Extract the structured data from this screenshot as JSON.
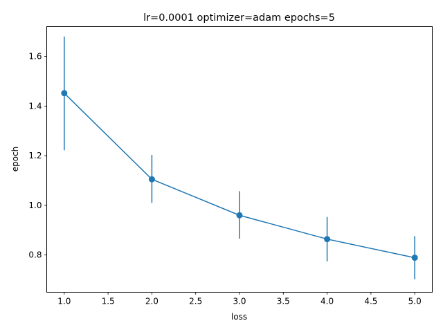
{
  "chart_data": {
    "type": "line",
    "title": "lr=0.0001 optimizer=adam epochs=5",
    "xlabel": "loss",
    "ylabel": "epoch",
    "xlim": [
      0.8,
      5.2
    ],
    "ylim": [
      0.65,
      1.72
    ],
    "xticks": [
      "1.0",
      "1.5",
      "2.0",
      "2.5",
      "3.0",
      "3.5",
      "4.0",
      "4.5",
      "5.0"
    ],
    "yticks": [
      "0.8",
      "1.0",
      "1.2",
      "1.4",
      "1.6"
    ],
    "grid": false,
    "series": [
      {
        "color": "#1f77b4",
        "marker": "circle",
        "points": [
          {
            "x": 1,
            "y": 1.452,
            "err_low": 1.222,
            "err_high": 1.68
          },
          {
            "x": 2,
            "y": 1.105,
            "err_low": 1.01,
            "err_high": 1.203
          },
          {
            "x": 3,
            "y": 0.96,
            "err_low": 0.866,
            "err_high": 1.057
          },
          {
            "x": 4,
            "y": 0.864,
            "err_low": 0.774,
            "err_high": 0.953
          },
          {
            "x": 5,
            "y": 0.789,
            "err_low": 0.702,
            "err_high": 0.876
          }
        ]
      }
    ]
  }
}
